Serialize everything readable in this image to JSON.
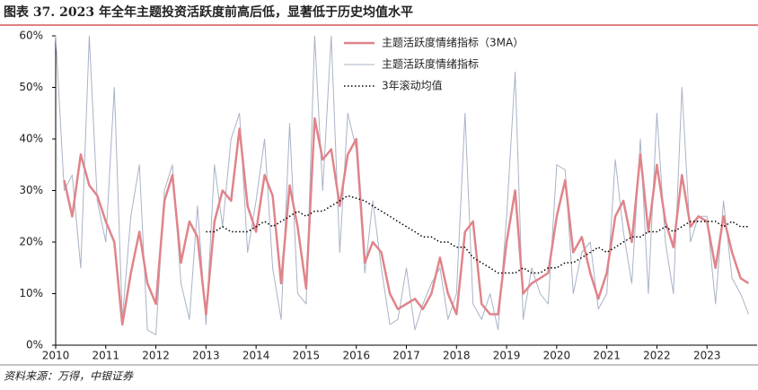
{
  "chart_data": {
    "type": "line",
    "title": "图表 37. 2023 年全年主题投资活跃度前高后低，显著低于历史均值水平",
    "source": "资料来源：万得，中银证券",
    "legend": "upper center",
    "xlim": [
      2010,
      2024
    ],
    "xticks": [
      2010,
      2011,
      2012,
      2013,
      2014,
      2015,
      2016,
      2017,
      2018,
      2019,
      2020,
      2021,
      2022,
      2023
    ],
    "ylim": [
      0,
      60
    ],
    "yticks": [
      {
        "value": 0,
        "label": "0%"
      },
      {
        "value": 10,
        "label": "10%"
      },
      {
        "value": 20,
        "label": "20%"
      },
      {
        "value": 30,
        "label": "30%"
      },
      {
        "value": 40,
        "label": "40%"
      },
      {
        "value": 50,
        "label": "50%"
      },
      {
        "value": 60,
        "label": "60%"
      }
    ],
    "x": [
      2010,
      2010.17,
      2010.33,
      2010.5,
      2010.67,
      2010.83,
      2011,
      2011.17,
      2011.33,
      2011.5,
      2011.67,
      2011.83,
      2012,
      2012.17,
      2012.33,
      2012.5,
      2012.67,
      2012.83,
      2013,
      2013.17,
      2013.33,
      2013.5,
      2013.67,
      2013.83,
      2014,
      2014.17,
      2014.33,
      2014.5,
      2014.67,
      2014.83,
      2015,
      2015.17,
      2015.33,
      2015.5,
      2015.67,
      2015.83,
      2016,
      2016.17,
      2016.33,
      2016.5,
      2016.67,
      2016.83,
      2017,
      2017.17,
      2017.33,
      2017.5,
      2017.67,
      2017.83,
      2018,
      2018.17,
      2018.33,
      2018.5,
      2018.67,
      2018.83,
      2019,
      2019.17,
      2019.33,
      2019.5,
      2019.67,
      2019.83,
      2020,
      2020.17,
      2020.33,
      2020.5,
      2020.67,
      2020.83,
      2021,
      2021.17,
      2021.33,
      2021.5,
      2021.67,
      2021.83,
      2022,
      2022.17,
      2022.33,
      2022.5,
      2022.67,
      2022.83,
      2023,
      2023.17,
      2023.33,
      2023.5,
      2023.67,
      2023.83
    ],
    "series": [
      {
        "name": "主题活跃度情绪指标（3MA）",
        "color": "#e0848a",
        "width": 2.5,
        "values": [
          null,
          32,
          25,
          37,
          31,
          29,
          24,
          20,
          4,
          14,
          22,
          12,
          8,
          28,
          33,
          16,
          24,
          21,
          6,
          24,
          30,
          28,
          42,
          27,
          22,
          33,
          29,
          12,
          31,
          23,
          11,
          44,
          36,
          38,
          27,
          37,
          40,
          16,
          20,
          18,
          10,
          7,
          8,
          9,
          7,
          10,
          17,
          10,
          6,
          22,
          24,
          8,
          6,
          6,
          20,
          30,
          10,
          12,
          13,
          14,
          25,
          32,
          18,
          21,
          14,
          9,
          14,
          25,
          28,
          20,
          37,
          22,
          35,
          24,
          19,
          33,
          23,
          25,
          24,
          15,
          25,
          18,
          13,
          12
        ]
      },
      {
        "name": "主题活跃度情绪指标",
        "color": "#a9b3c6",
        "width": 1,
        "values": [
          60,
          30,
          33,
          15,
          60,
          28,
          20,
          50,
          5,
          25,
          35,
          3,
          2,
          30,
          35,
          12,
          5,
          27,
          4,
          35,
          23,
          40,
          45,
          18,
          28,
          40,
          15,
          5,
          43,
          10,
          8,
          60,
          30,
          60,
          18,
          45,
          38,
          14,
          28,
          15,
          4,
          5,
          15,
          3,
          8,
          12,
          15,
          5,
          10,
          45,
          8,
          5,
          10,
          3,
          25,
          53,
          5,
          15,
          10,
          8,
          35,
          34,
          10,
          18,
          20,
          7,
          10,
          36,
          22,
          12,
          40,
          10,
          45,
          20,
          10,
          50,
          20,
          25,
          25,
          8,
          28,
          13,
          10,
          6
        ]
      },
      {
        "name": "3年滚动均值",
        "color": "#000000",
        "width": 1.5,
        "linestyle": "dotted",
        "values": [
          null,
          null,
          null,
          null,
          null,
          null,
          null,
          null,
          null,
          null,
          null,
          null,
          null,
          null,
          null,
          null,
          null,
          null,
          22,
          22,
          23,
          22,
          22,
          22,
          23,
          24,
          23,
          24,
          25,
          26,
          25,
          26,
          26,
          27,
          28,
          29,
          28.5,
          28,
          27,
          26,
          25,
          24,
          23,
          22,
          21,
          21,
          20,
          20,
          19,
          19,
          17,
          16,
          15,
          14,
          14,
          14,
          15,
          14,
          14,
          15,
          15,
          16,
          16,
          17,
          18,
          19,
          18,
          19,
          20,
          21,
          21,
          22,
          22,
          23,
          22,
          23,
          24,
          24,
          24,
          24,
          23,
          24,
          23,
          23
        ]
      }
    ]
  }
}
